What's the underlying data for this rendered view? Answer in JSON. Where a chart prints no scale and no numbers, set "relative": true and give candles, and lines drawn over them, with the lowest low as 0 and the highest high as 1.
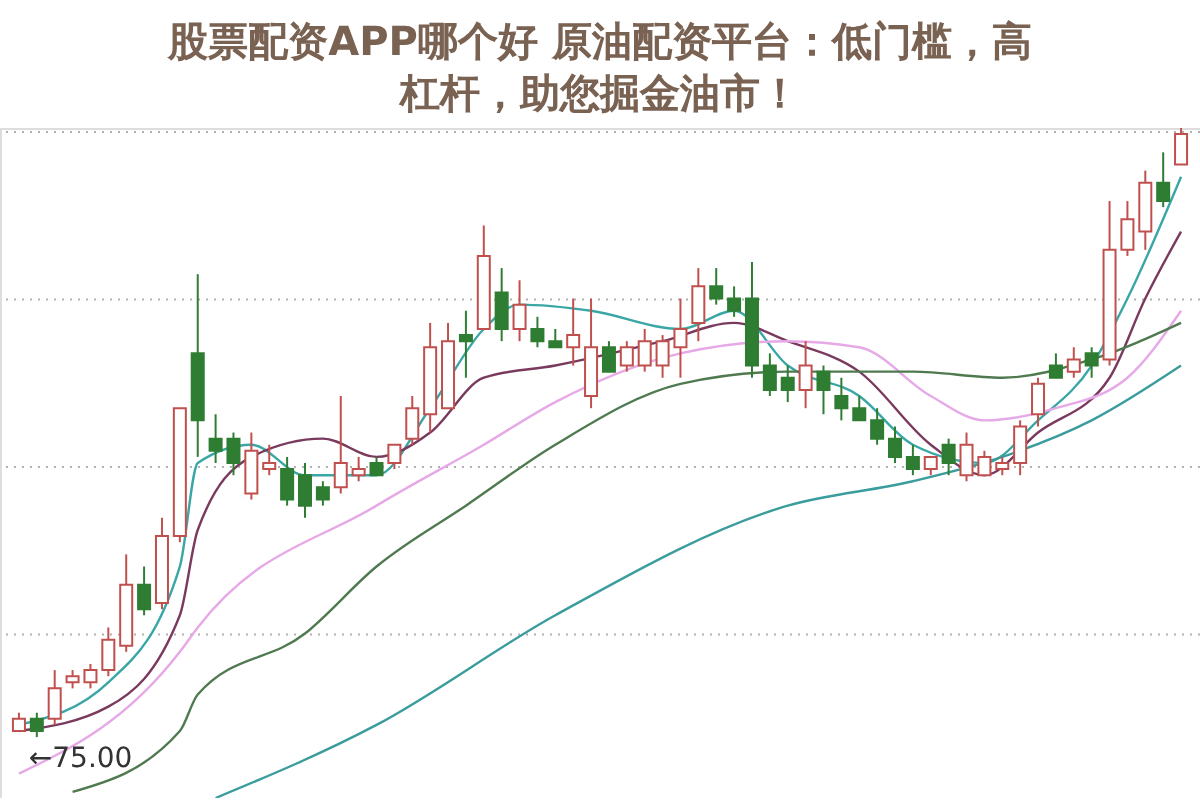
{
  "chart_data": {
    "type": "candlestick",
    "relative": true,
    "grid": "y",
    "title": "股票配资APP哪个好 原油配资平台：低门槛，高杠杆，助您掘金油市！",
    "annotations": [
      "←75.00"
    ],
    "categories": [
      null,
      null,
      null,
      null,
      null,
      null,
      null,
      null,
      null,
      null,
      null,
      null,
      null,
      null,
      null,
      null,
      null,
      null,
      null,
      null,
      null,
      null,
      null,
      null,
      null,
      null,
      null,
      null,
      null,
      null,
      null,
      null,
      null,
      null,
      null,
      null,
      null,
      null,
      null,
      null,
      null,
      null,
      null,
      null,
      null,
      null,
      null,
      null,
      null,
      null,
      null,
      null,
      null,
      null,
      null,
      null,
      null,
      null,
      null,
      null,
      null,
      null,
      null,
      null,
      null,
      null
    ],
    "ohlc": [
      [
        0.01,
        0.04,
        0.01,
        0.03
      ],
      [
        0.03,
        0.04,
        0,
        0.01
      ],
      [
        0.03,
        0.11,
        0.02,
        0.08
      ],
      [
        0.09,
        0.11,
        0.08,
        0.1
      ],
      [
        0.09,
        0.12,
        0.08,
        0.11
      ],
      [
        0.11,
        0.18,
        0.1,
        0.16
      ],
      [
        0.15,
        0.3,
        0.14,
        0.25
      ],
      [
        0.25,
        0.28,
        0.2,
        0.21
      ],
      [
        0.22,
        0.36,
        0.21,
        0.33
      ],
      [
        0.33,
        0.54,
        0.32,
        0.54
      ],
      [
        0.63,
        0.76,
        0.46,
        0.52
      ],
      [
        0.49,
        0.53,
        0.45,
        0.47
      ],
      [
        0.49,
        0.5,
        0.43,
        0.45
      ],
      [
        0.4,
        0.5,
        0.39,
        0.47
      ],
      [
        0.44,
        0.48,
        0.43,
        0.45
      ],
      [
        0.44,
        0.46,
        0.38,
        0.39
      ],
      [
        0.43,
        0.45,
        0.36,
        0.38
      ],
      [
        0.41,
        0.42,
        0.38,
        0.39
      ],
      [
        0.41,
        0.56,
        0.4,
        0.45
      ],
      [
        0.43,
        0.46,
        0.42,
        0.44
      ],
      [
        0.45,
        0.46,
        0.43,
        0.43
      ],
      [
        0.45,
        0.48,
        0.44,
        0.48
      ],
      [
        0.49,
        0.56,
        0.48,
        0.54
      ],
      [
        0.53,
        0.68,
        0.5,
        0.64
      ],
      [
        0.54,
        0.68,
        0.54,
        0.65
      ],
      [
        0.66,
        0.7,
        0.59,
        0.65
      ],
      [
        0.67,
        0.84,
        0.67,
        0.79
      ],
      [
        0.73,
        0.77,
        0.65,
        0.67
      ],
      [
        0.67,
        0.75,
        0.65,
        0.71
      ],
      [
        0.67,
        0.69,
        0.64,
        0.65
      ],
      [
        0.65,
        0.67,
        0.64,
        0.64
      ],
      [
        0.64,
        0.72,
        0.61,
        0.66
      ],
      [
        0.56,
        0.72,
        0.54,
        0.64
      ],
      [
        0.64,
        0.65,
        0.6,
        0.6
      ],
      [
        0.61,
        0.65,
        0.6,
        0.64
      ],
      [
        0.61,
        0.67,
        0.6,
        0.65
      ],
      [
        0.61,
        0.66,
        0.59,
        0.65
      ],
      [
        0.64,
        0.72,
        0.59,
        0.67
      ],
      [
        0.68,
        0.77,
        0.65,
        0.74
      ],
      [
        0.74,
        0.77,
        0.71,
        0.72
      ],
      [
        0.72,
        0.74,
        0.69,
        0.7
      ],
      [
        0.72,
        0.78,
        0.59,
        0.61
      ],
      [
        0.61,
        0.63,
        0.56,
        0.57
      ],
      [
        0.59,
        0.61,
        0.55,
        0.57
      ],
      [
        0.57,
        0.65,
        0.54,
        0.61
      ],
      [
        0.6,
        0.61,
        0.53,
        0.57
      ],
      [
        0.56,
        0.59,
        0.52,
        0.54
      ],
      [
        0.54,
        0.56,
        0.52,
        0.52
      ],
      [
        0.52,
        0.54,
        0.48,
        0.49
      ],
      [
        0.49,
        0.51,
        0.45,
        0.46
      ],
      [
        0.46,
        0.48,
        0.43,
        0.44
      ],
      [
        0.44,
        0.46,
        0.43,
        0.46
      ],
      [
        0.48,
        0.49,
        0.43,
        0.45
      ],
      [
        0.43,
        0.5,
        0.42,
        0.48
      ],
      [
        0.43,
        0.47,
        0.43,
        0.46
      ],
      [
        0.44,
        0.46,
        0.43,
        0.45
      ],
      [
        0.45,
        0.52,
        0.43,
        0.51
      ],
      [
        0.53,
        0.59,
        0.51,
        0.58
      ],
      [
        0.61,
        0.63,
        0.59,
        0.59
      ],
      [
        0.6,
        0.64,
        0.59,
        0.62
      ],
      [
        0.63,
        0.64,
        0.59,
        0.61
      ],
      [
        0.62,
        0.88,
        0.61,
        0.8
      ],
      [
        0.8,
        0.88,
        0.79,
        0.85
      ],
      [
        0.83,
        0.93,
        0.8,
        0.91
      ],
      [
        0.91,
        0.96,
        0.87,
        0.88
      ],
      [
        0.94,
        1,
        0.94,
        0.99
      ]
    ],
    "colors": [
      "#c0504d",
      "#2e7d32",
      "#c0504d",
      "#c0504d",
      "#c0504d",
      "#c0504d",
      "#c0504d",
      "#2e7d32",
      "#c0504d",
      "#c0504d",
      "#2e7d32",
      "#2e7d32",
      "#2e7d32",
      "#c0504d",
      "#c0504d",
      "#2e7d32",
      "#2e7d32",
      "#2e7d32",
      "#c0504d",
      "#c0504d",
      "#2e7d32",
      "#c0504d",
      "#c0504d",
      "#c0504d",
      "#c0504d",
      "#2e7d32",
      "#c0504d",
      "#2e7d32",
      "#c0504d",
      "#2e7d32",
      "#2e7d32",
      "#c0504d",
      "#c0504d",
      "#2e7d32",
      "#c0504d",
      "#c0504d",
      "#c0504d",
      "#c0504d",
      "#c0504d",
      "#2e7d32",
      "#2e7d32",
      "#2e7d32",
      "#2e7d32",
      "#2e7d32",
      "#c0504d",
      "#2e7d32",
      "#2e7d32",
      "#2e7d32",
      "#2e7d32",
      "#2e7d32",
      "#2e7d32",
      "#c0504d",
      "#2e7d32",
      "#c0504d",
      "#c0504d",
      "#c0504d",
      "#c0504d",
      "#c0504d",
      "#2e7d32",
      "#c0504d",
      "#2e7d32",
      "#c0504d",
      "#c0504d",
      "#c0504d",
      "#2e7d32",
      "#c0504d"
    ],
    "series": [
      {
        "type": "line",
        "color": "#3aa6a6",
        "values": [
          0.02,
          null,
          null,
          null,
          null,
          0.09,
          null,
          null,
          null,
          0.28,
          0.45,
          null,
          null,
          0.48,
          null,
          null,
          0.43,
          null,
          null,
          null,
          0.43,
          null,
          null,
          0.54,
          null,
          null,
          0.67,
          null,
          0.71,
          null,
          null,
          null,
          0.7,
          null,
          null,
          null,
          null,
          0.67,
          null,
          null,
          0.7,
          null,
          null,
          0.61,
          null,
          null,
          null,
          0.56,
          null,
          null,
          0.48,
          null,
          null,
          null,
          0.45,
          null,
          null,
          0.52,
          null,
          null,
          0.61,
          null,
          0.72,
          null,
          null,
          0.92
        ]
      },
      {
        "type": "line",
        "color": "#7a3a5e",
        "values": [
          0.01,
          null,
          null,
          null,
          null,
          0.05,
          null,
          null,
          null,
          0.2,
          0.34,
          null,
          null,
          0.46,
          null,
          null,
          null,
          0.49,
          null,
          null,
          0.46,
          null,
          null,
          0.5,
          null,
          null,
          0.59,
          null,
          null,
          null,
          0.61,
          null,
          null,
          null,
          null,
          null,
          0.65,
          null,
          null,
          null,
          0.68,
          null,
          null,
          0.65,
          null,
          null,
          null,
          0.6,
          null,
          null,
          null,
          0.48,
          null,
          null,
          0.43,
          null,
          null,
          0.5,
          null,
          null,
          null,
          0.59,
          null,
          0.72,
          null,
          0.83
        ]
      },
      {
        "type": "line",
        "color": "#e6a8e6",
        "values": [
          -0.06,
          null,
          null,
          null,
          null,
          null,
          null,
          null,
          null,
          0.14,
          0.18,
          null,
          null,
          null,
          null,
          null,
          null,
          null,
          null,
          null,
          0.38,
          null,
          null,
          null,
          null,
          null,
          0.48,
          null,
          null,
          null,
          0.55,
          null,
          null,
          null,
          null,
          null,
          null,
          0.63,
          null,
          null,
          null,
          null,
          null,
          0.65,
          null,
          null,
          null,
          0.64,
          null,
          null,
          null,
          0.56,
          null,
          null,
          0.52,
          null,
          null,
          null,
          0.54,
          null,
          null,
          null,
          0.59,
          null,
          null,
          0.7
        ]
      },
      {
        "type": "line",
        "color": "#4f7a4f",
        "values": [
          null,
          null,
          null,
          -0.09,
          null,
          null,
          null,
          null,
          null,
          0.01,
          0.07,
          null,
          null,
          null,
          null,
          null,
          0.17,
          null,
          null,
          null,
          0.28,
          null,
          null,
          null,
          null,
          0.38,
          null,
          null,
          null,
          null,
          0.48,
          null,
          null,
          null,
          null,
          null,
          null,
          0.58,
          null,
          null,
          null,
          null,
          null,
          0.6,
          null,
          null,
          null,
          null,
          null,
          null,
          0.6,
          null,
          null,
          null,
          null,
          0.59,
          null,
          null,
          null,
          null,
          0.62,
          null,
          null,
          null,
          null,
          0.68
        ]
      },
      {
        "type": "line",
        "color": "#3a9c9c",
        "values": [
          null,
          null,
          null,
          null,
          null,
          null,
          null,
          null,
          null,
          null,
          null,
          -0.1,
          null,
          null,
          null,
          null,
          null,
          null,
          null,
          null,
          0.02,
          null,
          null,
          null,
          null,
          null,
          null,
          null,
          null,
          null,
          0.2,
          null,
          null,
          null,
          null,
          null,
          null,
          null,
          null,
          null,
          null,
          null,
          null,
          0.38,
          null,
          null,
          null,
          null,
          null,
          null,
          0.42,
          null,
          null,
          null,
          null,
          0.46,
          null,
          null,
          null,
          null,
          0.52,
          null,
          null,
          null,
          null,
          0.61
        ]
      }
    ]
  }
}
